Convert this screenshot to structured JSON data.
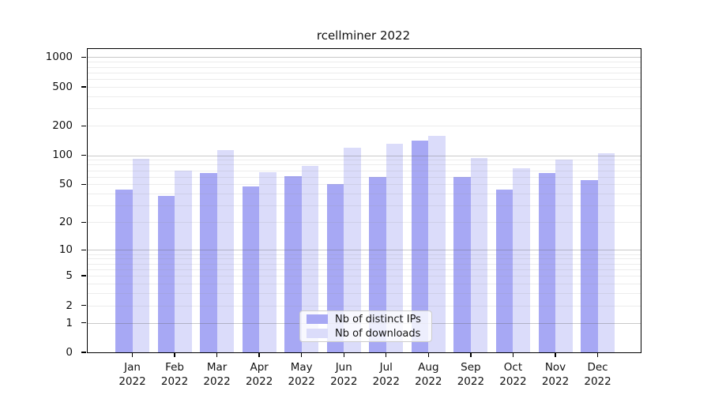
{
  "chart_data": {
    "type": "bar",
    "title": "rcellminer 2022",
    "categories": [
      "Jan",
      "Feb",
      "Mar",
      "Apr",
      "May",
      "Jun",
      "Jul",
      "Aug",
      "Sep",
      "Oct",
      "Nov",
      "Dec"
    ],
    "xtick_second_line": "2022",
    "series": [
      {
        "name": "Nb of distinct IPs",
        "color": "#a7a8f4",
        "values": [
          44,
          38,
          65,
          48,
          61,
          50,
          60,
          140,
          60,
          44,
          65,
          55
        ]
      },
      {
        "name": "Nb of downloads",
        "color": "#dbdcfa",
        "values": [
          92,
          70,
          112,
          67,
          77,
          120,
          131,
          157,
          94,
          74,
          91,
          105
        ]
      }
    ],
    "yscale": "log10(value+1)",
    "yticks": [
      0,
      1,
      2,
      5,
      10,
      20,
      50,
      100,
      200,
      500,
      1000
    ],
    "ylim": [
      0,
      1200
    ],
    "grid": true,
    "legend_position": "bottom-center",
    "colors": {
      "background": "#ffffff",
      "axis": "#000000",
      "grid_major": "rgba(100,100,100,0.35)",
      "grid_minor": "rgba(150,150,150,0.18)",
      "legend_background": "rgba(255,255,255,0.8)",
      "legend_border": "#cccccc"
    }
  }
}
